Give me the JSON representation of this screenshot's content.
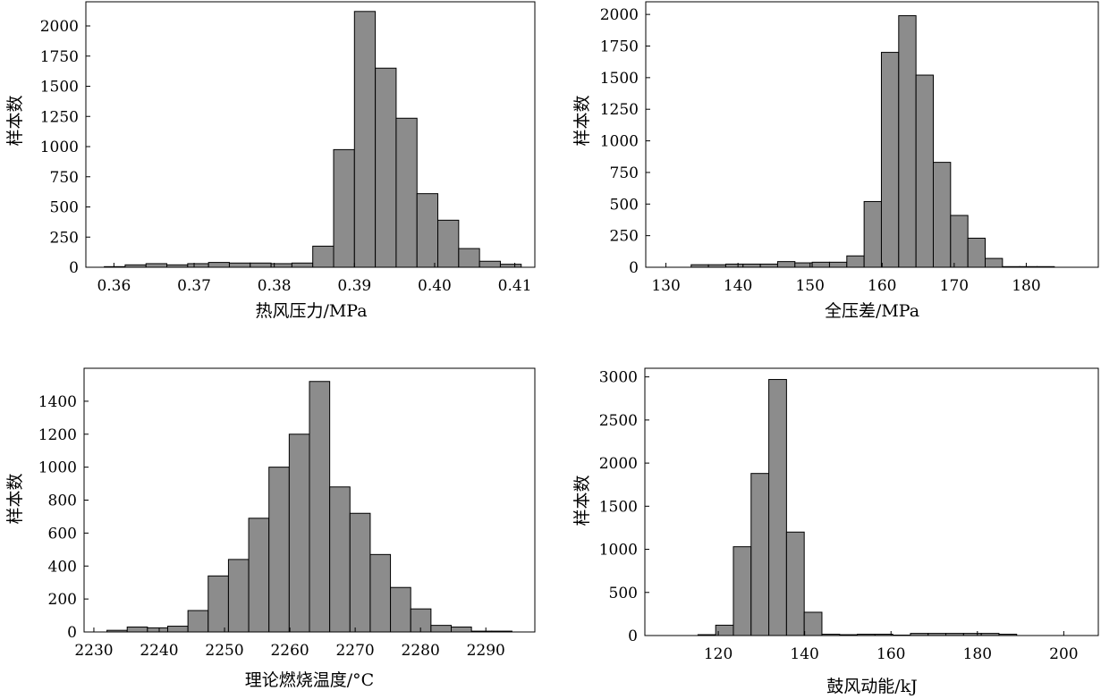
{
  "colors": {
    "bar_fill": "#8c8c8c",
    "bar_stroke": "#000000",
    "axis": "#000000",
    "background": "#ffffff"
  },
  "chart_data": [
    {
      "type": "bar",
      "xlabel": "热风压力/MPa",
      "ylabel": "样本数",
      "xlim": [
        0.3565,
        0.4125
      ],
      "ylim": [
        0,
        2200
      ],
      "xticks": [
        0.36,
        0.37,
        0.38,
        0.39,
        0.4,
        0.41
      ],
      "xtick_labels": [
        "0.36",
        "0.37",
        "0.38",
        "0.39",
        "0.40",
        "0.41"
      ],
      "yticks": [
        0,
        250,
        500,
        750,
        1000,
        1250,
        1500,
        1750,
        2000
      ],
      "bin_edges": [
        0.3588,
        0.3614,
        0.364,
        0.3666,
        0.3692,
        0.3718,
        0.3744,
        0.377,
        0.3796,
        0.3822,
        0.3848,
        0.3874,
        0.39,
        0.3926,
        0.3952,
        0.3978,
        0.4004,
        0.403,
        0.4056,
        0.4082,
        0.4108
      ],
      "values": [
        5,
        20,
        30,
        20,
        30,
        40,
        35,
        35,
        30,
        35,
        175,
        975,
        2120,
        1650,
        1235,
        610,
        390,
        155,
        50,
        25
      ],
      "grid": false
    },
    {
      "type": "bar",
      "xlabel": "全压差/MPa",
      "ylabel": "样本数",
      "xlim": [
        127.2,
        190
      ],
      "ylim": [
        0,
        2100
      ],
      "xticks": [
        130,
        140,
        150,
        160,
        170,
        180
      ],
      "xtick_labels": [
        "130",
        "140",
        "150",
        "160",
        "170",
        "180"
      ],
      "yticks": [
        0,
        250,
        500,
        750,
        1000,
        1250,
        1500,
        1750,
        2000
      ],
      "bin_edges": [
        128.7,
        131.1,
        133.5,
        135.9,
        138.3,
        140.7,
        143.1,
        145.5,
        147.9,
        150.3,
        152.7,
        155.1,
        157.5,
        159.9,
        162.3,
        164.7,
        167.1,
        169.5,
        171.9,
        174.3,
        176.7,
        179.1,
        181.5,
        183.9,
        186.3
      ],
      "values": [
        0,
        0,
        20,
        20,
        25,
        25,
        25,
        45,
        35,
        40,
        40,
        90,
        520,
        1700,
        1990,
        1520,
        830,
        410,
        230,
        70,
        5,
        5,
        5,
        0
      ],
      "grid": false
    },
    {
      "type": "bar",
      "xlabel": "理论燃烧温度/°C",
      "ylabel": "样本数",
      "xlim": [
        2228.5,
        2297.5
      ],
      "ylim": [
        0,
        1600
      ],
      "xticks": [
        2230,
        2240,
        2250,
        2260,
        2270,
        2280,
        2290
      ],
      "xtick_labels": [
        "2230",
        "2240",
        "2250",
        "2260",
        "2270",
        "2280",
        "2290"
      ],
      "yticks": [
        0,
        200,
        400,
        600,
        800,
        1000,
        1200,
        1400
      ],
      "bin_edges": [
        2232,
        2235.1,
        2238.2,
        2241.3,
        2244.4,
        2247.5,
        2250.6,
        2253.7,
        2256.8,
        2259.9,
        2263,
        2266.1,
        2269.2,
        2272.3,
        2275.4,
        2278.5,
        2281.6,
        2284.7,
        2287.8,
        2290.9,
        2294
      ],
      "values": [
        10,
        30,
        25,
        35,
        130,
        340,
        440,
        690,
        1000,
        1200,
        1520,
        880,
        720,
        470,
        270,
        140,
        40,
        30,
        5,
        5
      ],
      "grid": false
    },
    {
      "type": "bar",
      "xlabel": "鼓风动能/kJ",
      "ylabel": "样本数",
      "xlim": [
        103,
        208
      ],
      "ylim": [
        0,
        3100
      ],
      "xticks": [
        120,
        140,
        160,
        180,
        200
      ],
      "xtick_labels": [
        "120",
        "140",
        "160",
        "180",
        "200"
      ],
      "yticks": [
        0,
        500,
        1000,
        1500,
        2000,
        2500,
        3000
      ],
      "bin_edges": [
        115.3,
        119.4,
        123.5,
        127.6,
        131.7,
        135.8,
        139.9,
        144,
        148.1,
        152.2,
        156.3,
        160.4,
        164.5,
        168.6,
        172.7,
        176.8,
        180.9,
        185,
        189.1,
        193.2
      ],
      "values": [
        10,
        120,
        1030,
        1880,
        2970,
        1200,
        270,
        15,
        10,
        15,
        15,
        5,
        25,
        25,
        25,
        25,
        25,
        15,
        0
      ],
      "grid": false
    }
  ]
}
